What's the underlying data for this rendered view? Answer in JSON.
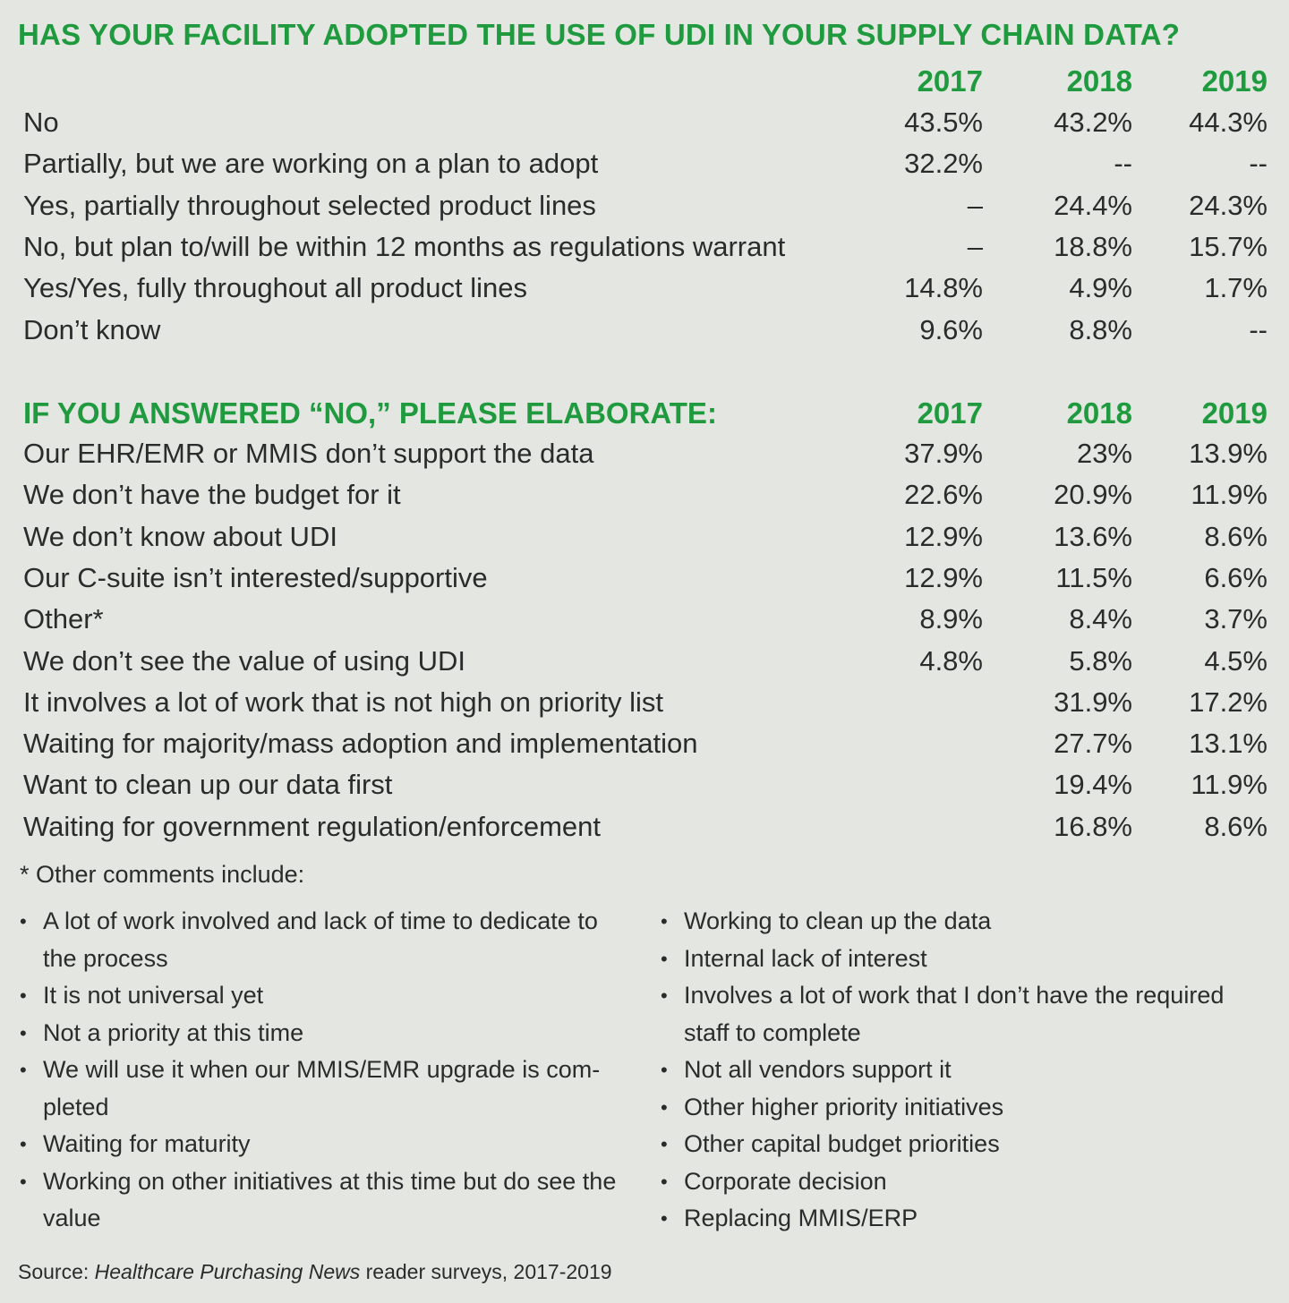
{
  "chart_data": [
    {
      "type": "table",
      "title": "HAS YOUR FACILITY ADOPTED THE USE OF UDI IN YOUR SUPPLY CHAIN DATA?",
      "columns": [
        "2017",
        "2018",
        "2019"
      ],
      "rows": [
        {
          "label": "No",
          "values": [
            "43.5%",
            "43.2%",
            "44.3%"
          ]
        },
        {
          "label": "Partially, but we are working on a plan to adopt",
          "values": [
            "32.2%",
            "--",
            "--"
          ]
        },
        {
          "label": "Yes, partially throughout selected product lines",
          "values": [
            "–",
            "24.4%",
            "24.3%"
          ]
        },
        {
          "label": "No, but plan to/will be within 12 months as regulations warrant",
          "values": [
            "–",
            "18.8%",
            "15.7%"
          ]
        },
        {
          "label": "Yes/Yes, fully throughout all product lines",
          "values": [
            "14.8%",
            "4.9%",
            "1.7%"
          ]
        },
        {
          "label": "Don’t know",
          "values": [
            "9.6%",
            "8.8%",
            "--"
          ]
        }
      ]
    },
    {
      "type": "table",
      "title": "IF YOU ANSWERED “NO,” PLEASE ELABORATE:",
      "columns": [
        "2017",
        "2018",
        "2019"
      ],
      "rows": [
        {
          "label": "Our EHR/EMR or MMIS don’t support the data",
          "values": [
            "37.9%",
            "23%",
            "13.9%"
          ]
        },
        {
          "label": "We don’t have the budget for it",
          "values": [
            "22.6%",
            "20.9%",
            "11.9%"
          ]
        },
        {
          "label": "We don’t know about UDI",
          "values": [
            "12.9%",
            "13.6%",
            "8.6%"
          ]
        },
        {
          "label": "Our C-suite isn’t interested/supportive",
          "values": [
            "12.9%",
            "11.5%",
            "6.6%"
          ]
        },
        {
          "label": "Other*",
          "values": [
            "8.9%",
            "8.4%",
            "3.7%"
          ]
        },
        {
          "label": "We don’t see the value of using UDI",
          "values": [
            "4.8%",
            "5.8%",
            "4.5%"
          ]
        },
        {
          "label": "It involves a lot of work that is not high on priority list",
          "values": [
            "",
            "31.9%",
            "17.2%"
          ]
        },
        {
          "label": "Waiting for majority/mass adoption and implementation",
          "values": [
            "",
            "27.7%",
            "13.1%"
          ]
        },
        {
          "label": "Want to clean up our data first",
          "values": [
            "",
            "19.4%",
            "11.9%"
          ]
        },
        {
          "label": "Waiting for government regulation/enforcement",
          "values": [
            "",
            "16.8%",
            "8.6%"
          ]
        }
      ]
    }
  ],
  "notes": {
    "intro": "* Other comments include:",
    "left": [
      "A lot of work involved and lack of time to dedicate to the process",
      "It is not universal yet",
      "Not a priority at this time",
      "We will use it when our MMIS/EMR upgrade is com- pleted",
      "Waiting for maturity",
      "Working on other initiatives at this time but do see the value"
    ],
    "right": [
      "Working to clean up the data",
      "Internal lack of interest",
      "Involves a lot of work that I don’t have the required staff to complete",
      "Not all vendors support it",
      "Other higher priority initiatives",
      "Other capital budget priorities",
      "Corporate decision",
      "Replacing MMIS/ERP"
    ],
    "bullet": "•"
  },
  "source": {
    "prefix": "Source: ",
    "publication": "Healthcare Purchasing News",
    "suffix": " reader surveys, 2017-2019"
  }
}
